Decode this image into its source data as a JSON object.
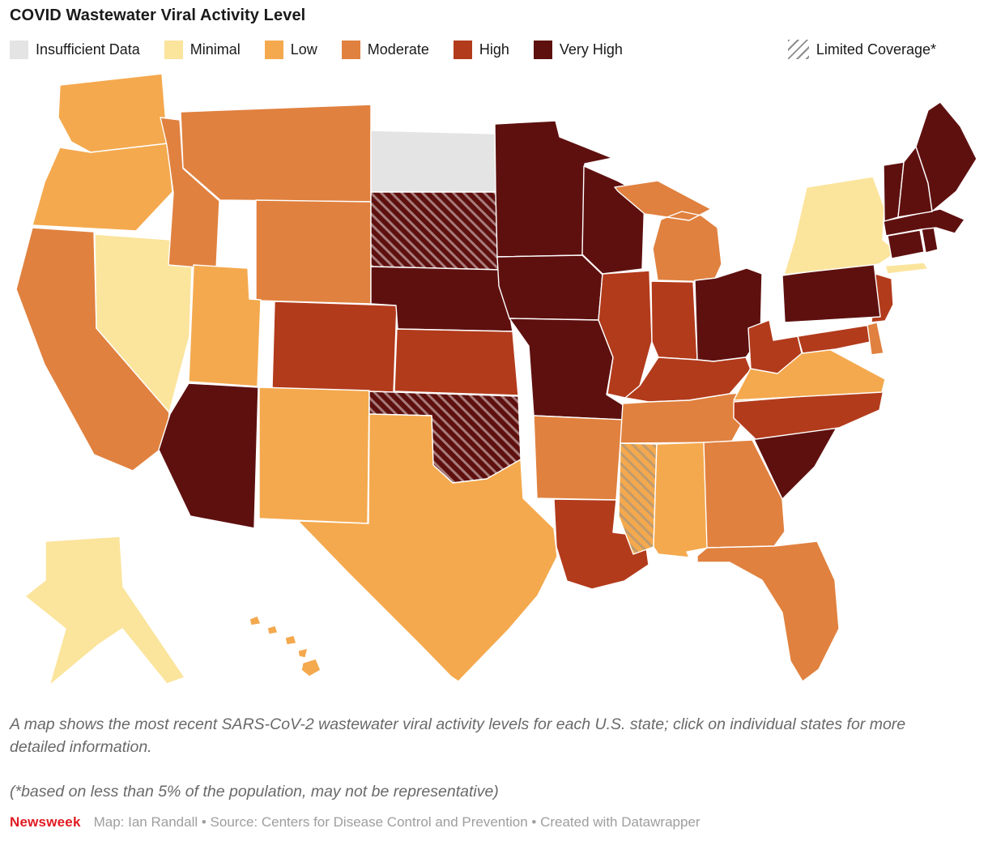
{
  "title": "COVID Wastewater Viral Activity Level",
  "legend": {
    "items": [
      {
        "key": "insufficient",
        "label": "Insufficient Data",
        "color": "#e4e4e4"
      },
      {
        "key": "minimal",
        "label": "Minimal",
        "color": "#fbe49c"
      },
      {
        "key": "low",
        "label": "Low",
        "color": "#f4a94e"
      },
      {
        "key": "moderate",
        "label": "Moderate",
        "color": "#e0813f"
      },
      {
        "key": "high",
        "label": "High",
        "color": "#b23b1c"
      },
      {
        "key": "very_high",
        "label": "Very High",
        "color": "#5e100f"
      }
    ],
    "limited": {
      "label": "Limited Coverage*"
    }
  },
  "map": {
    "states": [
      {
        "abbr": "WA",
        "name": "Washington",
        "level": "low",
        "limited": false
      },
      {
        "abbr": "OR",
        "name": "Oregon",
        "level": "low",
        "limited": false
      },
      {
        "abbr": "CA",
        "name": "California",
        "level": "moderate",
        "limited": false
      },
      {
        "abbr": "NV",
        "name": "Nevada",
        "level": "minimal",
        "limited": false
      },
      {
        "abbr": "ID",
        "name": "Idaho",
        "level": "moderate",
        "limited": false
      },
      {
        "abbr": "MT",
        "name": "Montana",
        "level": "moderate",
        "limited": false
      },
      {
        "abbr": "WY",
        "name": "Wyoming",
        "level": "moderate",
        "limited": false
      },
      {
        "abbr": "UT",
        "name": "Utah",
        "level": "low",
        "limited": false
      },
      {
        "abbr": "CO",
        "name": "Colorado",
        "level": "high",
        "limited": false
      },
      {
        "abbr": "AZ",
        "name": "Arizona",
        "level": "very_high",
        "limited": false
      },
      {
        "abbr": "NM",
        "name": "New Mexico",
        "level": "low",
        "limited": false
      },
      {
        "abbr": "ND",
        "name": "North Dakota",
        "level": "insufficient",
        "limited": false
      },
      {
        "abbr": "SD",
        "name": "South Dakota",
        "level": "very_high",
        "limited": true
      },
      {
        "abbr": "NE",
        "name": "Nebraska",
        "level": "very_high",
        "limited": false
      },
      {
        "abbr": "KS",
        "name": "Kansas",
        "level": "high",
        "limited": false
      },
      {
        "abbr": "OK",
        "name": "Oklahoma",
        "level": "very_high",
        "limited": true
      },
      {
        "abbr": "TX",
        "name": "Texas",
        "level": "low",
        "limited": false
      },
      {
        "abbr": "MN",
        "name": "Minnesota",
        "level": "very_high",
        "limited": false
      },
      {
        "abbr": "IA",
        "name": "Iowa",
        "level": "very_high",
        "limited": false
      },
      {
        "abbr": "MO",
        "name": "Missouri",
        "level": "very_high",
        "limited": false
      },
      {
        "abbr": "AR",
        "name": "Arkansas",
        "level": "moderate",
        "limited": false
      },
      {
        "abbr": "LA",
        "name": "Louisiana",
        "level": "high",
        "limited": false
      },
      {
        "abbr": "WI",
        "name": "Wisconsin",
        "level": "very_high",
        "limited": false
      },
      {
        "abbr": "IL",
        "name": "Illinois",
        "level": "high",
        "limited": false
      },
      {
        "abbr": "MI",
        "name": "Michigan",
        "level": "moderate",
        "limited": false
      },
      {
        "abbr": "IN",
        "name": "Indiana",
        "level": "high",
        "limited": false
      },
      {
        "abbr": "OH",
        "name": "Ohio",
        "level": "very_high",
        "limited": false
      },
      {
        "abbr": "KY",
        "name": "Kentucky",
        "level": "high",
        "limited": false
      },
      {
        "abbr": "TN",
        "name": "Tennessee",
        "level": "moderate",
        "limited": false
      },
      {
        "abbr": "MS",
        "name": "Mississippi",
        "level": "low",
        "limited": true
      },
      {
        "abbr": "AL",
        "name": "Alabama",
        "level": "low",
        "limited": false
      },
      {
        "abbr": "GA",
        "name": "Georgia",
        "level": "moderate",
        "limited": false
      },
      {
        "abbr": "FL",
        "name": "Florida",
        "level": "moderate",
        "limited": false
      },
      {
        "abbr": "SC",
        "name": "South Carolina",
        "level": "very_high",
        "limited": false
      },
      {
        "abbr": "NC",
        "name": "North Carolina",
        "level": "high",
        "limited": false
      },
      {
        "abbr": "VA",
        "name": "Virginia",
        "level": "low",
        "limited": false
      },
      {
        "abbr": "WV",
        "name": "West Virginia",
        "level": "high",
        "limited": false
      },
      {
        "abbr": "MD",
        "name": "Maryland",
        "level": "high",
        "limited": false
      },
      {
        "abbr": "DE",
        "name": "Delaware",
        "level": "moderate",
        "limited": false
      },
      {
        "abbr": "NJ",
        "name": "New Jersey",
        "level": "high",
        "limited": false
      },
      {
        "abbr": "PA",
        "name": "Pennsylvania",
        "level": "very_high",
        "limited": false
      },
      {
        "abbr": "NY",
        "name": "New York",
        "level": "minimal",
        "limited": false
      },
      {
        "abbr": "CT",
        "name": "Connecticut",
        "level": "very_high",
        "limited": false
      },
      {
        "abbr": "RI",
        "name": "Rhode Island",
        "level": "very_high",
        "limited": false
      },
      {
        "abbr": "MA",
        "name": "Massachusetts",
        "level": "very_high",
        "limited": false
      },
      {
        "abbr": "VT",
        "name": "Vermont",
        "level": "very_high",
        "limited": false
      },
      {
        "abbr": "NH",
        "name": "New Hampshire",
        "level": "very_high",
        "limited": false
      },
      {
        "abbr": "ME",
        "name": "Maine",
        "level": "very_high",
        "limited": false
      },
      {
        "abbr": "AK",
        "name": "Alaska",
        "level": "minimal",
        "limited": false
      },
      {
        "abbr": "HI",
        "name": "Hawaii",
        "level": "low",
        "limited": false
      }
    ]
  },
  "caption": "A map shows the most recent SARS-CoV-2 wastewater viral activity levels for each U.S. state; click on individual states for more detailed information.",
  "footnote": "(*based on less than 5% of the population, may not be representative)",
  "footer": {
    "brand": "Newsweek",
    "credit": "Map: Ian Randall • Source: Centers for Disease Control and Prevention • Created with Datawrapper"
  }
}
